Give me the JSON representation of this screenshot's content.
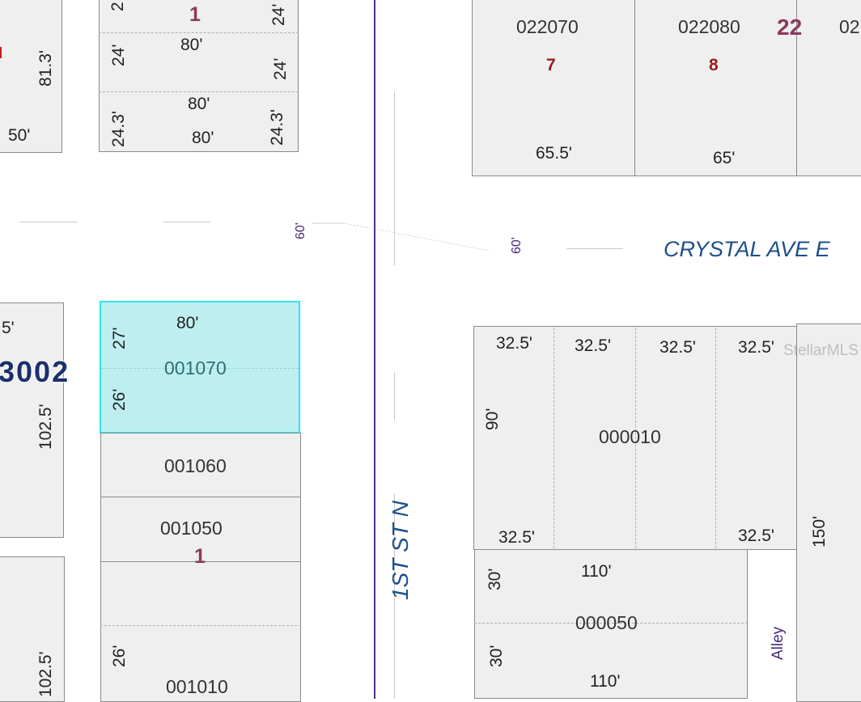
{
  "colors": {
    "selected_fill": "#bdeff0",
    "selected_border": "#2ee6ee",
    "parcel_fill": "#efefef",
    "street_label": "#1d4f8a",
    "block_label": "#8a3a5c",
    "lot_label": "#9b1a1a",
    "centerline": "#5b2a8a"
  },
  "streets": {
    "crystal_ave": "CRYSTAL AVE E",
    "first_st": "1ST ST N",
    "alley": "Alley",
    "row_west": "60'",
    "row_east": "60'"
  },
  "blocks": {
    "top_left_block": "1",
    "top_right_block": "22",
    "left_block_partial": "3002",
    "lower_left_block": "1"
  },
  "lots": {
    "lot7": "7",
    "lot8": "8"
  },
  "parcels": {
    "p022070": "022070",
    "p022080": "022080",
    "p_edge": "02",
    "selected": "001070",
    "p001060": "001060",
    "p001050": "001050",
    "p001010": "001010",
    "p000010": "000010",
    "p000050": "000050"
  },
  "dims": {
    "tl_24a": "24'",
    "tl_80a": "80'",
    "tl_24b": "24'",
    "tl_24c": "24'",
    "tl_80b": "80'",
    "tl_243a": "24.3'",
    "tl_243b": "24.3'",
    "tl_80c": "80'",
    "tl_2": "2",
    "ll_813": "81.3'",
    "ll_50": "50'",
    "tr_655": "65.5'",
    "tr_65": "65'",
    "sel_80": "80'",
    "sel_27": "27'",
    "sel_26": "26'",
    "ml_5": "5'",
    "ml_1025": "102.5'",
    "bl_1025": "102.5'",
    "bl_26": "26'",
    "r_325a": "32.5'",
    "r_325b": "32.5'",
    "r_325c": "32.5'",
    "r_325d": "32.5'",
    "r_90": "90'",
    "r_325e": "32.5'",
    "r_325f": "32.5'",
    "r_150": "150'",
    "r_30a": "30'",
    "r_110a": "110'",
    "r_30b": "30'",
    "r_110b": "110'"
  },
  "watermark": "StellarMLS"
}
